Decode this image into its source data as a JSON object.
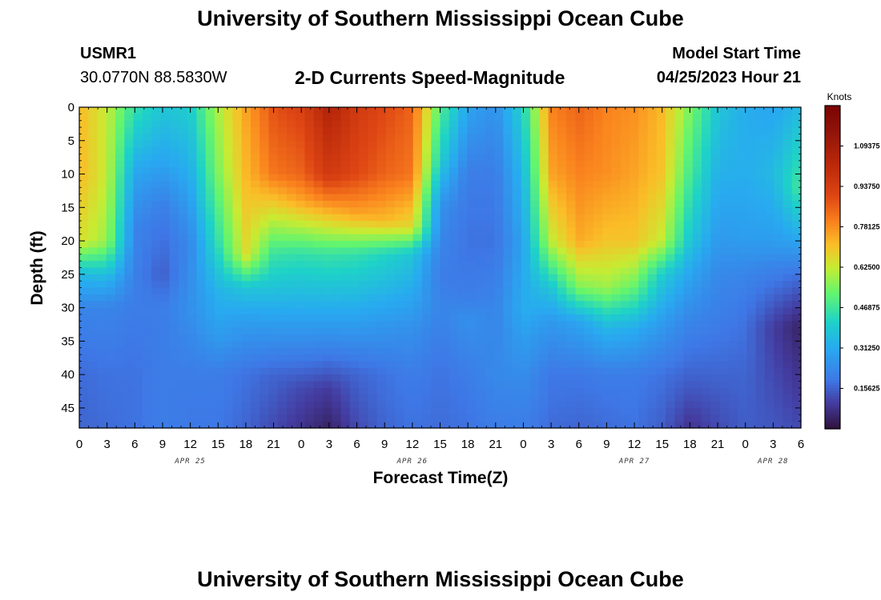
{
  "page": {
    "title": "University of Southern Mississippi Ocean Cube",
    "station_id": "USMR1",
    "coordinates": "30.0770N  88.5830W",
    "subtitle": "2-D Currents Speed-Magnitude",
    "model_start_label": "Model Start Time",
    "model_start_value": "04/25/2023 Hour 21",
    "footer_title": "University of Southern Mississippi Ocean Cube"
  },
  "chart_data": {
    "type": "heatmap",
    "title": "2-D Currents Speed-Magnitude",
    "xlabel": "Forecast Time(Z)",
    "ylabel": "Depth (ft)",
    "x_tick_labels": [
      "0",
      "3",
      "6",
      "9",
      "12",
      "15",
      "18",
      "21",
      "0",
      "3",
      "6",
      "9",
      "12",
      "15",
      "18",
      "21",
      "0",
      "3",
      "6",
      "9",
      "12",
      "15",
      "18",
      "21",
      "0",
      "3",
      "6"
    ],
    "x_range_hours": [
      0,
      78
    ],
    "date_labels": [
      {
        "label": "APR 25",
        "hour": 12
      },
      {
        "label": "APR 26",
        "hour": 36
      },
      {
        "label": "APR 27",
        "hour": 60
      },
      {
        "label": "APR 28",
        "hour": 75
      }
    ],
    "y_tick_labels": [
      "0",
      "5",
      "10",
      "15",
      "20",
      "25",
      "30",
      "35",
      "40",
      "45"
    ],
    "y_range_ft": [
      0,
      48
    ],
    "colorbar": {
      "title": "Knots",
      "range": [
        0,
        1.25
      ],
      "tick_labels": [
        "1.09375",
        "0.93750",
        "0.78125",
        "0.62500",
        "0.46875",
        "0.31250",
        "0.15625"
      ],
      "tick_values": [
        1.09375,
        0.9375,
        0.78125,
        0.625,
        0.46875,
        0.3125,
        0.15625
      ]
    },
    "profiles": [
      {
        "hour": 0,
        "depths": [
          0,
          10,
          20,
          25,
          30,
          40,
          48
        ],
        "speeds": [
          0.72,
          0.72,
          0.65,
          0.35,
          0.22,
          0.17,
          0.16
        ]
      },
      {
        "hour": 3,
        "depths": [
          0,
          10,
          20,
          26,
          30,
          40,
          48
        ],
        "speeds": [
          0.62,
          0.62,
          0.58,
          0.33,
          0.22,
          0.18,
          0.17
        ]
      },
      {
        "hour": 6,
        "depths": [
          0,
          5,
          10,
          18,
          30,
          40,
          48
        ],
        "speeds": [
          0.45,
          0.38,
          0.3,
          0.22,
          0.2,
          0.18,
          0.18
        ]
      },
      {
        "hour": 9,
        "depths": [
          0,
          8,
          15,
          25,
          30,
          40,
          48
        ],
        "speeds": [
          0.38,
          0.3,
          0.2,
          0.15,
          0.2,
          0.2,
          0.2
        ]
      },
      {
        "hour": 12,
        "depths": [
          0,
          10,
          20,
          30,
          40,
          48
        ],
        "speeds": [
          0.4,
          0.32,
          0.23,
          0.25,
          0.2,
          0.19
        ]
      },
      {
        "hour": 15,
        "depths": [
          0,
          10,
          20,
          28,
          34,
          40,
          48
        ],
        "speeds": [
          0.6,
          0.55,
          0.45,
          0.33,
          0.28,
          0.2,
          0.19
        ]
      },
      {
        "hour": 18,
        "depths": [
          0,
          10,
          22,
          27,
          32,
          40,
          48
        ],
        "speeds": [
          0.75,
          0.72,
          0.65,
          0.38,
          0.28,
          0.18,
          0.16
        ]
      },
      {
        "hour": 21,
        "depths": [
          0,
          10,
          14,
          22,
          33,
          40,
          48
        ],
        "speeds": [
          0.88,
          0.82,
          0.7,
          0.46,
          0.27,
          0.16,
          0.12
        ]
      },
      {
        "hour": 24,
        "depths": [
          0,
          10,
          14,
          22,
          33,
          42,
          48
        ],
        "speeds": [
          0.92,
          0.85,
          0.75,
          0.45,
          0.27,
          0.12,
          0.08
        ]
      },
      {
        "hour": 27,
        "depths": [
          0,
          10,
          14,
          22,
          33,
          42,
          48
        ],
        "speeds": [
          1.05,
          0.95,
          0.8,
          0.46,
          0.27,
          0.1,
          0.04
        ]
      },
      {
        "hour": 30,
        "depths": [
          0,
          10,
          16,
          22,
          33,
          40,
          48
        ],
        "speeds": [
          0.95,
          0.9,
          0.75,
          0.45,
          0.27,
          0.16,
          0.12
        ]
      },
      {
        "hour": 33,
        "depths": [
          0,
          10,
          17,
          22,
          33,
          40,
          48
        ],
        "speeds": [
          0.9,
          0.85,
          0.72,
          0.42,
          0.26,
          0.18,
          0.16
        ]
      },
      {
        "hour": 36,
        "depths": [
          0,
          10,
          18,
          22,
          33,
          40,
          48
        ],
        "speeds": [
          0.85,
          0.82,
          0.66,
          0.38,
          0.25,
          0.2,
          0.18
        ]
      },
      {
        "hour": 39,
        "depths": [
          0,
          8,
          15,
          25,
          30,
          40,
          48
        ],
        "speeds": [
          0.5,
          0.4,
          0.25,
          0.2,
          0.22,
          0.18,
          0.17
        ]
      },
      {
        "hour": 42,
        "depths": [
          0,
          10,
          20,
          28,
          32,
          40,
          48
        ],
        "speeds": [
          0.3,
          0.2,
          0.18,
          0.2,
          0.25,
          0.2,
          0.18
        ]
      },
      {
        "hour": 45,
        "depths": [
          0,
          10,
          20,
          30,
          40,
          48
        ],
        "speeds": [
          0.25,
          0.2,
          0.18,
          0.22,
          0.23,
          0.2
        ]
      },
      {
        "hour": 48,
        "depths": [
          0,
          10,
          20,
          30,
          40,
          48
        ],
        "speeds": [
          0.42,
          0.35,
          0.3,
          0.32,
          0.24,
          0.2
        ]
      },
      {
        "hour": 51,
        "depths": [
          0,
          10,
          20,
          27,
          32,
          40,
          48
        ],
        "speeds": [
          0.8,
          0.75,
          0.62,
          0.38,
          0.27,
          0.19,
          0.17
        ]
      },
      {
        "hour": 54,
        "depths": [
          0,
          10,
          20,
          27,
          32,
          40,
          48
        ],
        "speeds": [
          0.85,
          0.8,
          0.74,
          0.55,
          0.3,
          0.19,
          0.16
        ]
      },
      {
        "hour": 57,
        "depths": [
          0,
          10,
          20,
          27,
          33,
          40,
          48
        ],
        "speeds": [
          0.8,
          0.78,
          0.7,
          0.58,
          0.34,
          0.2,
          0.17
        ]
      },
      {
        "hour": 60,
        "depths": [
          0,
          10,
          20,
          27,
          33,
          40,
          48
        ],
        "speeds": [
          0.78,
          0.75,
          0.7,
          0.52,
          0.32,
          0.2,
          0.18
        ]
      },
      {
        "hour": 63,
        "depths": [
          0,
          10,
          20,
          25,
          32,
          40,
          48
        ],
        "speeds": [
          0.72,
          0.7,
          0.62,
          0.4,
          0.28,
          0.18,
          0.15
        ]
      },
      {
        "hour": 66,
        "depths": [
          0,
          10,
          20,
          25,
          32,
          42,
          48
        ],
        "speeds": [
          0.55,
          0.48,
          0.38,
          0.3,
          0.22,
          0.14,
          0.08
        ]
      },
      {
        "hour": 69,
        "depths": [
          0,
          10,
          20,
          25,
          32,
          42,
          48
        ],
        "speeds": [
          0.38,
          0.33,
          0.27,
          0.23,
          0.2,
          0.15,
          0.12
        ]
      },
      {
        "hour": 72,
        "depths": [
          0,
          10,
          20,
          25,
          32,
          40,
          48
        ],
        "speeds": [
          0.32,
          0.32,
          0.28,
          0.22,
          0.18,
          0.16,
          0.15
        ]
      },
      {
        "hour": 75,
        "depths": [
          0,
          10,
          20,
          25,
          33,
          40,
          48
        ],
        "speeds": [
          0.3,
          0.35,
          0.28,
          0.2,
          0.1,
          0.12,
          0.14
        ]
      },
      {
        "hour": 78,
        "depths": [
          0,
          12,
          20,
          25,
          33,
          40,
          48
        ],
        "speeds": [
          0.35,
          0.48,
          0.3,
          0.18,
          0.04,
          0.08,
          0.12
        ]
      }
    ]
  }
}
